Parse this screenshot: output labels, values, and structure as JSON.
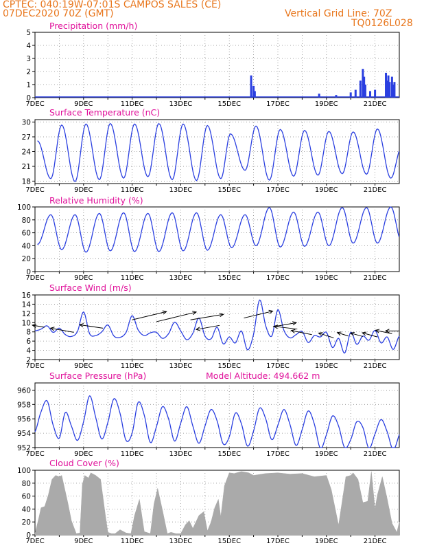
{
  "header": {
    "line1": "CPTEC:   040:19W-07:01S   CAMPOS SALES (CE)",
    "line2_left": "07DEC2020 70Z (GMT)",
    "line2_right": "Vertical Grid Line: 70Z",
    "line3_right": "TQ0126L028"
  },
  "colors": {
    "header": "#e8761c",
    "title": "#e0109a",
    "series": "#2a3fe0",
    "cloud": "#aaaaaa"
  },
  "chart_data": [
    {
      "type": "bar",
      "title": "Precipitation (mm/h)",
      "x_ticks": [
        "7DEC",
        "9DEC",
        "11DEC",
        "13DEC",
        "15DEC",
        "17DEC",
        "19DEC",
        "21DEC"
      ],
      "ylim": [
        0,
        5
      ],
      "y_ticks": [
        0,
        1,
        2,
        3,
        4,
        5
      ],
      "bars": [
        {
          "x": 15.9,
          "y": 1.7
        },
        {
          "x": 16.0,
          "y": 0.9
        },
        {
          "x": 16.05,
          "y": 0.5
        },
        {
          "x": 18.7,
          "y": 0.3
        },
        {
          "x": 19.4,
          "y": 0.2
        },
        {
          "x": 20.0,
          "y": 0.4
        },
        {
          "x": 20.2,
          "y": 0.6
        },
        {
          "x": 20.4,
          "y": 1.3
        },
        {
          "x": 20.5,
          "y": 2.2
        },
        {
          "x": 20.55,
          "y": 1.6
        },
        {
          "x": 20.6,
          "y": 1.0
        },
        {
          "x": 20.8,
          "y": 0.5
        },
        {
          "x": 21.0,
          "y": 0.6
        },
        {
          "x": 21.45,
          "y": 1.9
        },
        {
          "x": 21.5,
          "y": 1.3
        },
        {
          "x": 21.55,
          "y": 1.7
        },
        {
          "x": 21.6,
          "y": 1.2
        },
        {
          "x": 21.7,
          "y": 1.6
        },
        {
          "x": 21.75,
          "y": 1.0
        },
        {
          "x": 21.8,
          "y": 1.2
        }
      ]
    },
    {
      "type": "line",
      "title": "Surface Temperature (nC)",
      "x_ticks": [
        "7DEC",
        "9DEC",
        "11DEC",
        "13DEC",
        "15DEC",
        "17DEC",
        "19DEC",
        "21DEC"
      ],
      "ylim": [
        17.5,
        30.5
      ],
      "y_ticks": [
        18,
        21,
        24,
        27,
        30
      ],
      "diurnal": {
        "min_x": [
          7.65,
          8.65,
          9.65,
          10.65,
          11.65,
          12.65,
          13.65,
          14.65,
          15.65,
          16.65,
          17.65,
          18.65,
          19.65,
          20.65,
          21.65
        ],
        "min_y": [
          18.5,
          17.9,
          18.3,
          18.6,
          18.9,
          18.3,
          18.1,
          18.5,
          20.2,
          18.2,
          19.0,
          19.2,
          19.5,
          19.4,
          18.6
        ],
        "max_x": [
          7.1,
          8.1,
          9.1,
          10.1,
          11.1,
          12.1,
          13.1,
          14.1,
          15.05,
          16.1,
          17.1,
          18.1,
          19.1,
          20.1,
          21.1,
          22.1
        ],
        "max_y": [
          26.2,
          29.4,
          29.6,
          29.7,
          29.6,
          29.7,
          29.6,
          29.3,
          27.6,
          29.2,
          28.5,
          28.3,
          28.1,
          28.0,
          28.6,
          25.0
        ]
      }
    },
    {
      "type": "line",
      "title": "Relative Humidity (%)",
      "x_ticks": [
        "7DEC",
        "9DEC",
        "11DEC",
        "13DEC",
        "15DEC",
        "17DEC",
        "19DEC",
        "21DEC"
      ],
      "ylim": [
        0,
        100
      ],
      "y_ticks": [
        0,
        20,
        40,
        60,
        80,
        100
      ],
      "diurnal": {
        "min_x": [
          7.1,
          8.1,
          9.1,
          10.1,
          11.1,
          12.1,
          13.1,
          14.1,
          15.1,
          16.1,
          17.1,
          18.1,
          19.1,
          20.1,
          21.1,
          22.1
        ],
        "min_y": [
          42,
          34,
          30,
          32,
          31,
          31,
          32,
          33,
          37,
          40,
          38,
          39,
          40,
          44,
          44,
          46
        ],
        "max_x": [
          7.65,
          8.65,
          9.65,
          10.65,
          11.65,
          12.65,
          13.65,
          14.65,
          15.65,
          16.65,
          17.65,
          18.65,
          19.65,
          20.65,
          21.65
        ],
        "max_y": [
          88,
          88,
          90,
          91,
          90,
          91,
          91,
          88,
          88,
          99,
          92,
          92,
          99,
          99,
          100
        ]
      }
    },
    {
      "type": "line",
      "title": "Surface Wind (m/s)",
      "x_ticks": [
        "7DEC",
        "9DEC",
        "11DEC",
        "13DEC",
        "15DEC",
        "17DEC",
        "19DEC",
        "21DEC"
      ],
      "ylim": [
        2,
        16
      ],
      "y_ticks": [
        2,
        4,
        6,
        8,
        10,
        12,
        14,
        16
      ],
      "vals": [
        8.2,
        8.6,
        9.3,
        7.9,
        8.8,
        7.4,
        7.0,
        8.1,
        12.3,
        7.6,
        7.2,
        8.0,
        9.5,
        7.1,
        6.8,
        7.9,
        11.5,
        8.4,
        7.2,
        7.8,
        7.9,
        6.6,
        7.6,
        10.1,
        8.2,
        6.3,
        7.7,
        11.0,
        7.1,
        6.5,
        9.0,
        5.4,
        6.9,
        5.6,
        8.2,
        4.1,
        7.5,
        14.9,
        9.3,
        7.1,
        12.8,
        8.3,
        6.7,
        7.4,
        8.1,
        5.7,
        7.2,
        6.9,
        7.9,
        4.6,
        6.6,
        3.4,
        7.9,
        5.3,
        7.1,
        6.2,
        8.3,
        5.6,
        6.9,
        4.2,
        7.1,
        6.9
      ],
      "x_start": 7.0,
      "x_step": 0.25
    },
    {
      "type": "line",
      "title": "Surface Pressure (hPa)",
      "annotation": "Model Altitude: 494.662 m",
      "x_ticks": [
        "7DEC",
        "9DEC",
        "11DEC",
        "13DEC",
        "15DEC",
        "17DEC",
        "19DEC",
        "21DEC"
      ],
      "ylim": [
        952,
        961
      ],
      "y_ticks": [
        952,
        954,
        956,
        958,
        960
      ],
      "vals": [
        954.2,
        957.0,
        958.5,
        955.1,
        953.3,
        956.9,
        955.0,
        953.0,
        955.6,
        959.2,
        956.2,
        953.2,
        955.5,
        958.8,
        956.8,
        953.0,
        954.0,
        958.3,
        956.5,
        952.7,
        954.9,
        957.7,
        956.0,
        952.9,
        955.4,
        957.7,
        955.0,
        952.6,
        955.0,
        957.3,
        955.7,
        952.5,
        953.5,
        956.8,
        955.3,
        952.2,
        954.3,
        957.5,
        956.0,
        953.1,
        955.1,
        957.3,
        955.2,
        952.3,
        954.5,
        957.1,
        955.3,
        951.9,
        953.8,
        956.4,
        955.0,
        952.0,
        953.1,
        955.6,
        954.8,
        951.9,
        953.9,
        955.9,
        954.2,
        951.7,
        953.8,
        955.7,
        953.0
      ],
      "x_start": 7.0,
      "x_step": 0.25
    },
    {
      "type": "area",
      "title": "Cloud Cover (%)",
      "x_ticks": [
        "7DEC",
        "9DEC",
        "11DEC",
        "13DEC",
        "15DEC",
        "17DEC",
        "19DEC",
        "21DEC"
      ],
      "ylim": [
        0,
        100
      ],
      "y_ticks": [
        0,
        20,
        40,
        60,
        80,
        100
      ],
      "x": [
        7.0,
        7.15,
        7.25,
        7.4,
        7.55,
        7.7,
        7.85,
        8.0,
        8.1,
        8.35,
        8.5,
        8.7,
        8.85,
        8.95,
        9.05,
        9.2,
        9.3,
        9.5,
        9.7,
        9.9,
        10.0,
        10.15,
        10.3,
        10.5,
        10.75,
        10.95,
        11.1,
        11.3,
        11.5,
        11.75,
        11.9,
        12.05,
        12.25,
        12.45,
        12.6,
        12.8,
        13.0,
        13.2,
        13.35,
        13.5,
        13.75,
        13.95,
        14.1,
        14.25,
        14.4,
        14.55,
        14.65,
        14.8,
        15.0,
        15.2,
        15.5,
        15.8,
        16.0,
        16.5,
        17.0,
        17.5,
        18.0,
        18.5,
        19.0,
        19.2,
        19.5,
        19.8,
        20.0,
        20.1,
        20.3,
        20.5,
        20.7,
        20.85,
        21.0,
        21.1,
        21.3,
        21.5,
        21.7,
        21.9,
        22.0
      ],
      "y": [
        2,
        25,
        42,
        44,
        62,
        86,
        92,
        90,
        92,
        50,
        22,
        2,
        3,
        78,
        92,
        88,
        96,
        92,
        86,
        30,
        4,
        2,
        2,
        8,
        3,
        2,
        30,
        55,
        5,
        2,
        48,
        72,
        38,
        2,
        4,
        2,
        2,
        16,
        22,
        10,
        30,
        36,
        6,
        20,
        42,
        55,
        28,
        76,
        96,
        95,
        98,
        96,
        92,
        95,
        96,
        94,
        95,
        90,
        92,
        70,
        15,
        90,
        92,
        96,
        86,
        50,
        52,
        98,
        40,
        62,
        90,
        56,
        18,
        4,
        20
      ]
    }
  ]
}
